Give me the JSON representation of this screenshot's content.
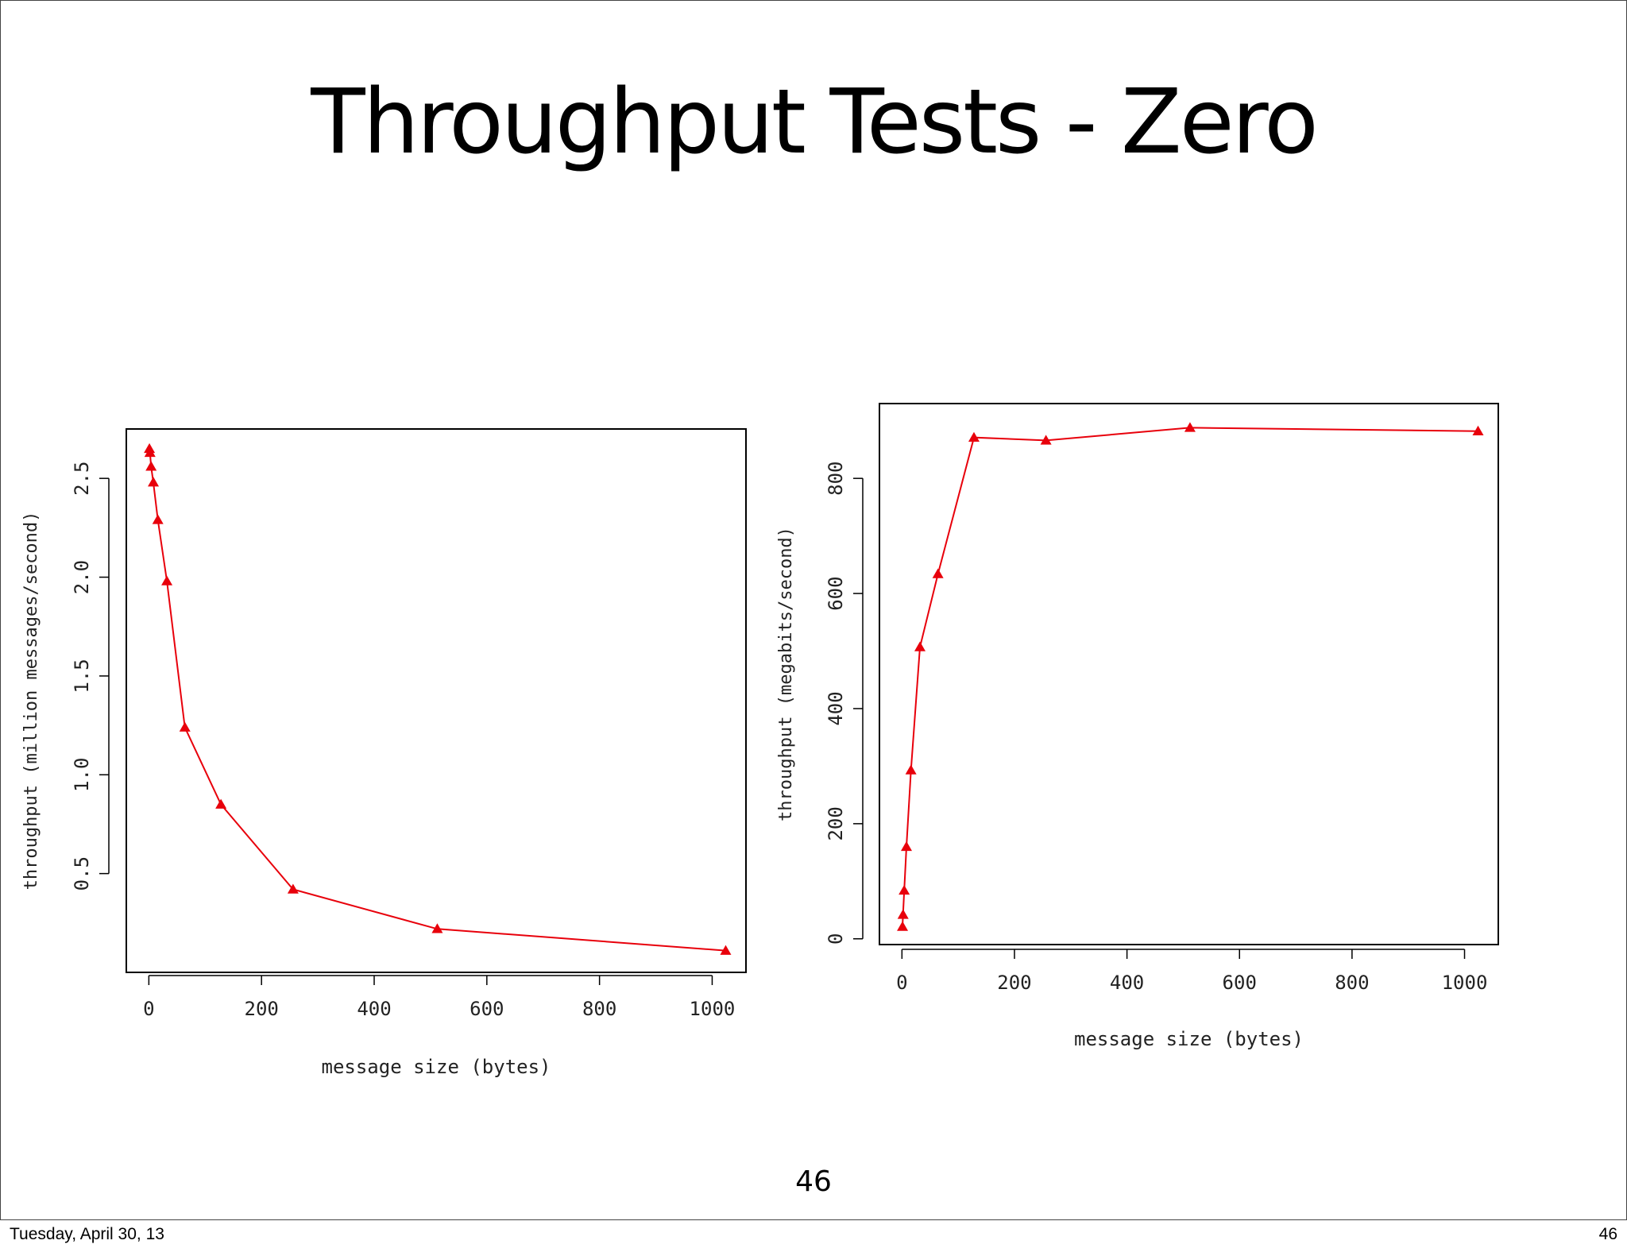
{
  "slide": {
    "title": "Throughput Tests - Zero",
    "page_number": "46"
  },
  "footer": {
    "date": "Tuesday, April 30, 13",
    "page": "46"
  },
  "colors": {
    "series": "#e8000b",
    "axis": "#000000"
  },
  "chart_data": [
    {
      "type": "line",
      "title": "",
      "xlabel": "message size (bytes)",
      "ylabel": "throughput (million messages/second)",
      "xlim": [
        -40,
        1060
      ],
      "ylim": [
        0,
        2.75
      ],
      "xticks": [
        0,
        200,
        400,
        600,
        800,
        1000
      ],
      "xtick_labels": [
        "0",
        "200",
        "400",
        "600",
        "800",
        "1000"
      ],
      "yticks": [
        0.5,
        1.0,
        1.5,
        2.0,
        2.5
      ],
      "ytick_labels": [
        "0.5",
        "1.0",
        "1.5",
        "2.0",
        "2.5"
      ],
      "grid": false,
      "marker": "triangle",
      "x": [
        1,
        2,
        4,
        8,
        16,
        32,
        64,
        128,
        256,
        512,
        1024
      ],
      "y": [
        2.65,
        2.63,
        2.56,
        2.48,
        2.29,
        1.98,
        1.24,
        0.85,
        0.42,
        0.22,
        0.11
      ]
    },
    {
      "type": "line",
      "title": "",
      "xlabel": "message size (bytes)",
      "ylabel": "throughput (megabits/second)",
      "xlim": [
        -40,
        1060
      ],
      "ylim": [
        -10,
        930
      ],
      "xticks": [
        0,
        200,
        400,
        600,
        800,
        1000
      ],
      "xtick_labels": [
        "0",
        "200",
        "400",
        "600",
        "800",
        "1000"
      ],
      "yticks": [
        0,
        200,
        400,
        600,
        800
      ],
      "ytick_labels": [
        "0",
        "200",
        "400",
        "600",
        "800"
      ],
      "grid": false,
      "marker": "triangle",
      "x": [
        1,
        2,
        4,
        8,
        16,
        32,
        64,
        128,
        256,
        512,
        1024
      ],
      "y": [
        21,
        42,
        84,
        160,
        293,
        507,
        634,
        871,
        866,
        888,
        882
      ]
    }
  ]
}
